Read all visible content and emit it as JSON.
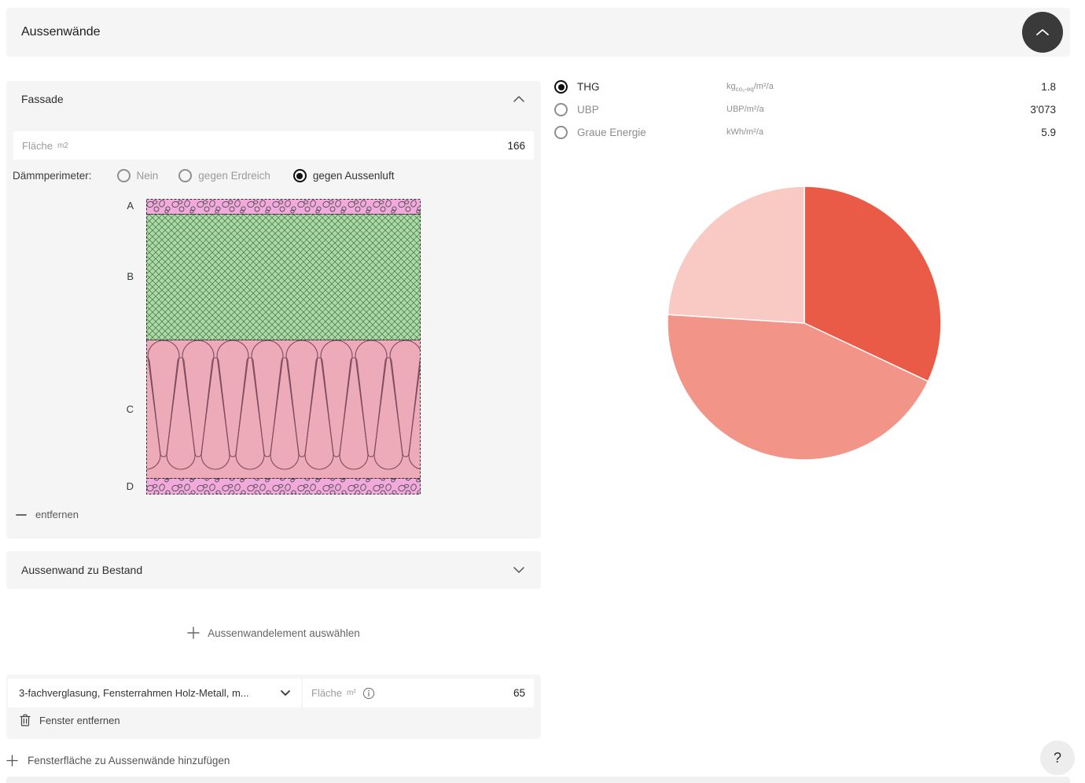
{
  "header": {
    "title": "Aussenwände"
  },
  "metrics": {
    "rows": [
      {
        "label": "THG",
        "selected": true,
        "unit_prefix": "kg",
        "unit_sub": "co₂-eq",
        "unit_suffix": "/m²/a",
        "value": "1.8"
      },
      {
        "label": "UBP",
        "selected": false,
        "unit_prefix": "UBP/m²/a",
        "unit_sub": "",
        "unit_suffix": "",
        "value": "3'073"
      },
      {
        "label": "Graue Energie",
        "selected": false,
        "unit_prefix": "kWh/m²/a",
        "unit_sub": "",
        "unit_suffix": "",
        "value": "5.9"
      }
    ]
  },
  "fassade": {
    "title": "Fassade",
    "flaeche": {
      "label": "Fläche",
      "unit": "m2",
      "value": "166"
    },
    "daemmperimeter": {
      "label": "Dämmperimeter:",
      "options": [
        {
          "label": "Nein",
          "selected": false
        },
        {
          "label": "gegen Erdreich",
          "selected": false
        },
        {
          "label": "gegen Aussenluft",
          "selected": true
        }
      ]
    },
    "wall": {
      "layers": [
        {
          "label": "A"
        },
        {
          "label": "B"
        },
        {
          "label": "C"
        },
        {
          "label": "D"
        }
      ]
    },
    "remove_label": "entfernen"
  },
  "bestand": {
    "title": "Aussenwand zu Bestand"
  },
  "add_element_label": "Aussenwandelement auswählen",
  "window": {
    "select_value": "3-fachverglasung, Fensterrahmen Holz-Metall, m...",
    "flaeche": {
      "label": "Fläche",
      "unit": "m²",
      "value": "65"
    },
    "remove_label": "Fenster entfernen"
  },
  "add_window_label": "Fensterfläche zu Aussenwände hinzufügen",
  "help_label": "?",
  "colors": {
    "accent_dark": "#e95b47",
    "accent_mid": "#f29488",
    "accent_light": "#f9c9c3",
    "panel": "#f5f5f5"
  },
  "chart_data": {
    "type": "pie",
    "metric": "THG",
    "unit": "kg co₂-eq/m²/a",
    "slices": [
      {
        "label": "segment-1",
        "value": 32,
        "color": "#e95b47"
      },
      {
        "label": "segment-2",
        "value": 44,
        "color": "#f29488"
      },
      {
        "label": "segment-3",
        "value": 24,
        "color": "#f9c9c3"
      }
    ],
    "start_angle_deg": 0,
    "direction": "clockwise",
    "legend": false
  }
}
